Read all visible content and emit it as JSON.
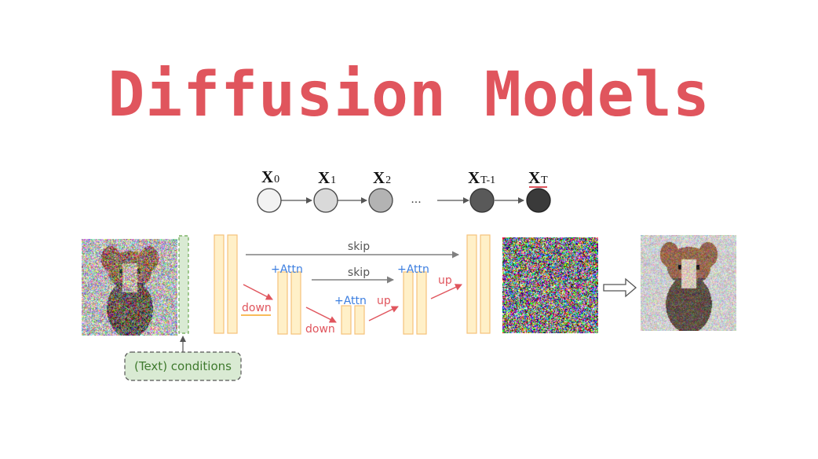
{
  "title": "Diffusion Models",
  "chain": {
    "nodes": [
      {
        "label": "X",
        "sub": "0",
        "fill": "#f2f2f2"
      },
      {
        "label": "X",
        "sub": "1",
        "fill": "#d9d9d9"
      },
      {
        "label": "X",
        "sub": "2",
        "fill": "#b3b3b3"
      },
      {
        "label": "X",
        "sub": "T-1",
        "fill": "#595959"
      },
      {
        "label": "X",
        "sub": "T",
        "fill": "#3a3a3a"
      }
    ],
    "ellipsis": "..."
  },
  "unet": {
    "skip_outer": "skip",
    "skip_inner": "skip",
    "attn_labels": [
      "+Attn",
      "+Attn",
      "+Attn"
    ],
    "down_labels": [
      "down",
      "down"
    ],
    "up_labels": [
      "up",
      "up"
    ]
  },
  "conditions_label": "(Text) conditions",
  "colors": {
    "title": "#e0555d",
    "block_fill": "#fff0c8",
    "block_stroke": "#f5c27a",
    "arrow_red": "#e0555d",
    "attn_blue": "#3d7fe0",
    "cond_fill": "#d9ead3",
    "cond_stroke": "#5a7d4f",
    "skip_gray": "#808080"
  }
}
